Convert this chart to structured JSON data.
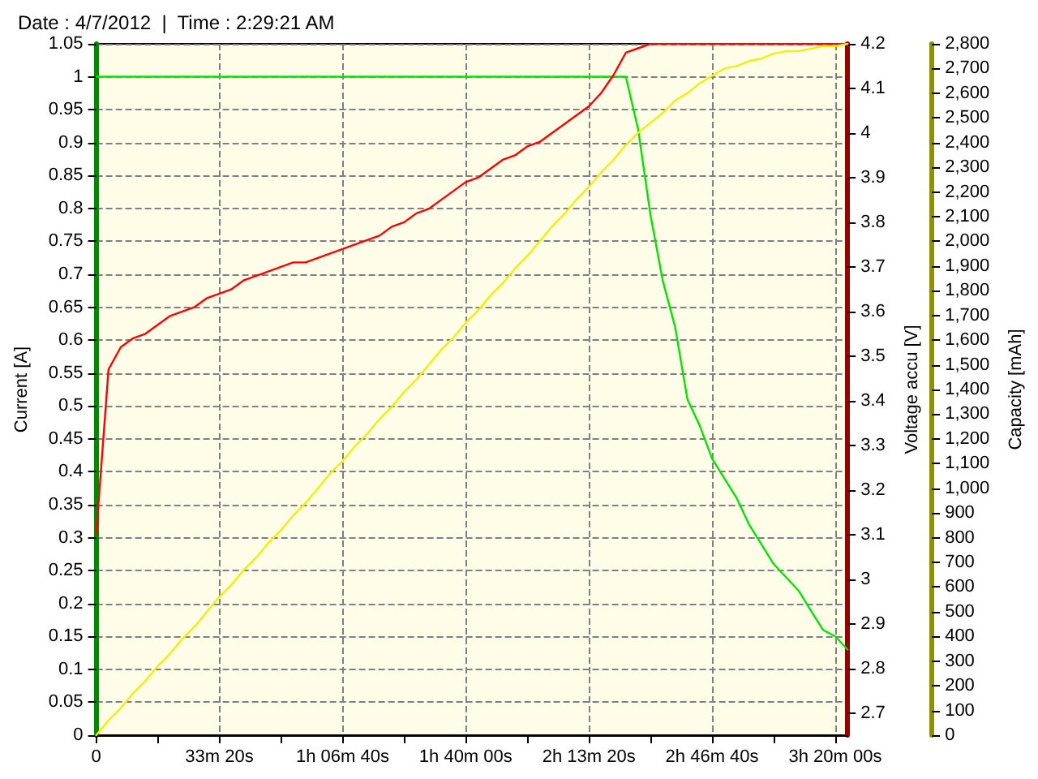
{
  "chart_data": {
    "type": "line",
    "title": "Date : 4/7/2012  |  Time : 2:29:21 AM",
    "ylabel": "Current [A]",
    "y2label": "Voltage accu [V]",
    "y3label": "Capacity [mAh]",
    "grid": true,
    "categories": [
      "0",
      null,
      null,
      null,
      null,
      null,
      null,
      null,
      null,
      null,
      "33m 20s",
      null,
      null,
      null,
      null,
      null,
      null,
      null,
      null,
      null,
      "1h 06m 40s",
      null,
      null,
      null,
      null,
      null,
      null,
      null,
      null,
      null,
      "1h 40m 00s",
      null,
      null,
      null,
      null,
      null,
      null,
      null,
      null,
      null,
      "2h 13m 20s",
      null,
      null,
      null,
      null,
      null,
      null,
      null,
      null,
      null,
      "2h 46m 40s",
      null,
      null,
      null,
      null,
      null,
      null,
      null,
      null,
      null,
      "3h 20m 00s",
      null
    ],
    "ylim": [
      0,
      1.05
    ],
    "yticks": [
      0,
      0.05,
      0.1,
      0.15,
      0.2,
      0.25,
      0.3,
      0.35,
      0.4,
      0.45,
      0.5,
      0.55,
      0.6,
      0.65,
      0.7,
      0.75,
      0.8,
      0.85,
      0.9,
      0.95,
      1,
      1.05
    ],
    "y2lim": [
      2.65,
      4.2
    ],
    "y2ticks": [
      2.7,
      2.8,
      2.9,
      3,
      3.1,
      3.2,
      3.3,
      3.4,
      3.5,
      3.6,
      3.7,
      3.8,
      3.9,
      4,
      4.1,
      4.2
    ],
    "y3lim": [
      0,
      2800
    ],
    "y3ticks": [
      0,
      100,
      200,
      300,
      400,
      500,
      600,
      700,
      800,
      900,
      {
        "value": 1000,
        "label": "1,000"
      },
      {
        "value": 1100,
        "label": "1,100"
      },
      {
        "value": 1200,
        "label": "1,200"
      },
      {
        "value": 1300,
        "label": "1,300"
      },
      {
        "value": 1400,
        "label": "1,400"
      },
      {
        "value": 1500,
        "label": "1,500"
      },
      {
        "value": 1600,
        "label": "1,600"
      },
      {
        "value": 1700,
        "label": "1,700"
      },
      {
        "value": 1800,
        "label": "1,800"
      },
      {
        "value": 1900,
        "label": "1,900"
      },
      {
        "value": 2000,
        "label": "2,000"
      },
      {
        "value": 2100,
        "label": "2,100"
      },
      {
        "value": 2200,
        "label": "2,200"
      },
      {
        "value": 2300,
        "label": "2,300"
      },
      {
        "value": 2400,
        "label": "2,400"
      },
      {
        "value": 2500,
        "label": "2,500"
      },
      {
        "value": 2600,
        "label": "2,600"
      },
      {
        "value": 2700,
        "label": "2,700"
      },
      {
        "value": 2800,
        "label": "2,800"
      }
    ],
    "series": [
      {
        "color": "#00e600",
        "axis": "y",
        "values": [
          1,
          1,
          1,
          1,
          1,
          1,
          1,
          1,
          1,
          1,
          1,
          1,
          1,
          1,
          1,
          1,
          1,
          1,
          1,
          1,
          1,
          1,
          1,
          1,
          1,
          1,
          1,
          1,
          1,
          1,
          1,
          1,
          1,
          1,
          1,
          1,
          1,
          1,
          1,
          1,
          1,
          1,
          1,
          1,
          0.92,
          0.79,
          0.69,
          0.62,
          0.51,
          0.47,
          0.42,
          0.39,
          0.36,
          0.32,
          0.29,
          0.26,
          0.24,
          0.22,
          0.19,
          0.16,
          0.15,
          0.13
        ]
      },
      {
        "color": "#ff0000",
        "axis": "y2",
        "values": [
          3.1,
          3.47,
          3.52,
          3.54,
          3.55,
          3.57,
          3.59,
          3.6,
          3.61,
          3.63,
          3.64,
          3.65,
          3.67,
          3.68,
          3.69,
          3.7,
          3.71,
          3.71,
          3.72,
          3.73,
          3.74,
          3.75,
          3.76,
          3.77,
          3.79,
          3.8,
          3.82,
          3.83,
          3.85,
          3.87,
          3.89,
          3.9,
          3.92,
          3.94,
          3.95,
          3.97,
          3.98,
          4,
          4.02,
          4.04,
          4.06,
          4.09,
          4.13,
          4.18,
          4.19,
          4.2,
          4.2,
          4.2,
          4.2,
          4.2,
          4.2,
          4.2,
          4.2,
          4.2,
          4.2,
          4.2,
          4.2,
          4.2,
          4.2,
          4.2,
          4.2,
          4.2
        ]
      },
      {
        "color": "#f0f000",
        "axis": "y3",
        "values": [
          0,
          60,
          110,
          170,
          220,
          280,
          330,
          390,
          440,
          500,
          560,
          610,
          670,
          720,
          780,
          830,
          890,
          940,
          1000,
          1060,
          1110,
          1170,
          1220,
          1280,
          1330,
          1390,
          1440,
          1500,
          1560,
          1610,
          1670,
          1720,
          1780,
          1830,
          1890,
          1940,
          2000,
          2060,
          2110,
          2170,
          2220,
          2280,
          2330,
          2390,
          2440,
          2480,
          2520,
          2570,
          2600,
          2640,
          2670,
          2700,
          2710,
          2730,
          2740,
          2760,
          2770,
          2770,
          2780,
          2790,
          2790,
          2800
        ]
      }
    ]
  }
}
